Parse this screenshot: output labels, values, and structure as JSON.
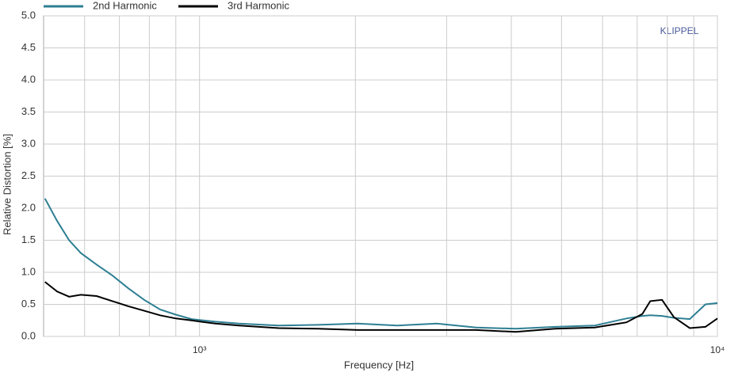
{
  "chart_data": {
    "type": "line",
    "x_label": "Frequency  [Hz]",
    "y_label": "Relative Distortion  [%]",
    "annotation": "KLIPPEL",
    "x_log": true,
    "grid": true,
    "legend_position": "top-left",
    "x": [
      503,
      531,
      560,
      590,
      633,
      679,
      729,
      782,
      839,
      900,
      965,
      1073,
      1192,
      1421,
      1694,
      2020,
      2408,
      2871,
      3422,
      4080,
      4864,
      5799,
      6674,
      7161,
      7418,
      7816,
      8240,
      8844,
      9482,
      10000
    ],
    "series": [
      {
        "name": "2nd Harmonic",
        "color": "#2e7f93",
        "values": [
          2.15,
          1.8,
          1.5,
          1.3,
          1.12,
          0.95,
          0.75,
          0.57,
          0.42,
          0.34,
          0.27,
          0.23,
          0.2,
          0.17,
          0.18,
          0.2,
          0.17,
          0.2,
          0.14,
          0.12,
          0.15,
          0.17,
          0.28,
          0.32,
          0.33,
          0.32,
          0.29,
          0.27,
          0.5,
          0.52
        ]
      },
      {
        "name": "3rd Harmonic",
        "color": "#000000",
        "values": [
          0.85,
          0.7,
          0.62,
          0.65,
          0.63,
          0.55,
          0.47,
          0.4,
          0.33,
          0.28,
          0.25,
          0.2,
          0.17,
          0.13,
          0.12,
          0.1,
          0.1,
          0.1,
          0.1,
          0.07,
          0.12,
          0.14,
          0.22,
          0.35,
          0.55,
          0.57,
          0.3,
          0.13,
          0.15,
          0.28
        ]
      }
    ],
    "xlim": [
      500,
      10000
    ],
    "xticks": [
      {
        "value": 1000,
        "label": "10³"
      },
      {
        "value": 10000,
        "label": "10⁴"
      }
    ],
    "xminor_ticks": [
      600,
      700,
      800,
      900,
      2000,
      3000,
      4000,
      5000,
      6000,
      7000,
      8000,
      9000
    ],
    "ylim": [
      0,
      5
    ],
    "yticks": [
      {
        "value": 0,
        "label": "0.0"
      },
      0.5,
      {
        "value": 1,
        "label": "1.0"
      },
      1.5,
      {
        "value": 2,
        "label": "2.0"
      },
      2.5,
      {
        "value": 3,
        "label": "3.0"
      },
      3.5,
      {
        "value": 4,
        "label": "4.0"
      },
      4.5,
      {
        "value": 5,
        "label": "5.0"
      }
    ]
  }
}
